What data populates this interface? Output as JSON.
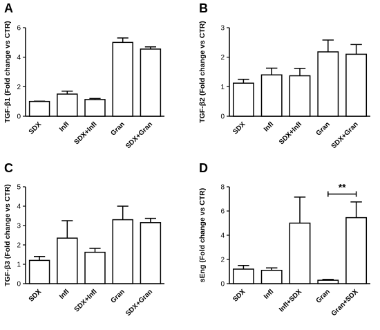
{
  "figure": {
    "panels": [
      "A",
      "B",
      "C",
      "D"
    ]
  },
  "chart_data": [
    {
      "panel": "A",
      "type": "bar",
      "ylabel": "TGF-β1 (Fold change vs CTR)",
      "categories": [
        "SDX",
        "Infl",
        "SDX+Infl",
        "Gran",
        "SDX+Gran"
      ],
      "values": [
        1.0,
        1.5,
        1.13,
        5.0,
        4.55
      ],
      "errors": [
        0.02,
        0.2,
        0.07,
        0.3,
        0.15
      ],
      "ylim": [
        0,
        6
      ],
      "yticks": [
        0,
        2,
        4,
        6
      ],
      "annotations": []
    },
    {
      "panel": "B",
      "type": "bar",
      "ylabel": "TGF-β2 (Fold change vs CTR)",
      "categories": [
        "SDX",
        "Infl",
        "SDX+Infl",
        "Gran",
        "SDX+Gran"
      ],
      "values": [
        1.12,
        1.4,
        1.37,
        2.18,
        2.1
      ],
      "errors": [
        0.13,
        0.23,
        0.25,
        0.4,
        0.33
      ],
      "ylim": [
        0,
        3
      ],
      "yticks": [
        0,
        1,
        2,
        3
      ],
      "annotations": []
    },
    {
      "panel": "C",
      "type": "bar",
      "ylabel": "TGF-β3 (Fold change vs CTR)",
      "categories": [
        "SDX",
        "Infl",
        "SDX+Infl",
        "Gran",
        "SDX+Gran"
      ],
      "values": [
        1.2,
        2.35,
        1.62,
        3.3,
        3.15
      ],
      "errors": [
        0.2,
        0.9,
        0.2,
        0.7,
        0.22
      ],
      "ylim": [
        0,
        5
      ],
      "yticks": [
        0,
        1,
        2,
        3,
        4,
        5
      ],
      "annotations": []
    },
    {
      "panel": "D",
      "type": "bar",
      "ylabel": "sEng (Fold change vs CTR)",
      "categories": [
        "SDX",
        "Infl",
        "Infl+SDX",
        "Gran",
        "Gran+SDX"
      ],
      "values": [
        1.2,
        1.1,
        5.0,
        0.28,
        5.45
      ],
      "errors": [
        0.3,
        0.2,
        2.15,
        0.07,
        1.3
      ],
      "ylim": [
        0,
        8
      ],
      "yticks": [
        0,
        2,
        4,
        6,
        8
      ],
      "annotations": [
        {
          "text": "**",
          "from_category": "Gran",
          "to_category": "Gran+SDX",
          "y": 7.4
        }
      ]
    }
  ]
}
